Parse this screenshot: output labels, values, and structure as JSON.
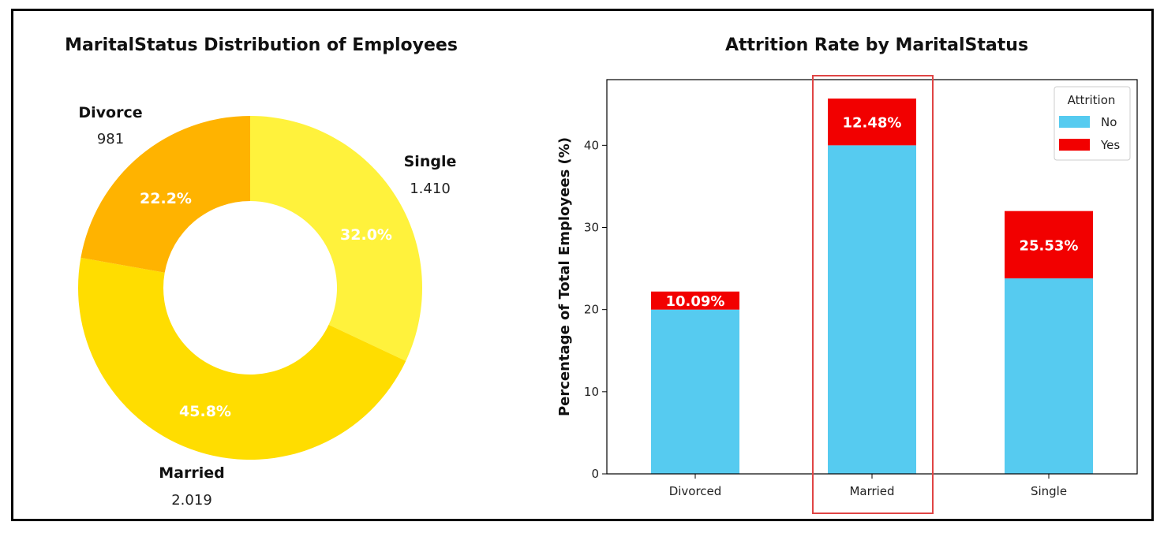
{
  "chart_data": [
    {
      "type": "pie",
      "donut": true,
      "title": "MaritalStatus Distribution of Employees",
      "slices": [
        {
          "name": "Single",
          "count_label": "1.410",
          "percent_label": "32.0%",
          "value": 32.0,
          "color": "#FFF23C"
        },
        {
          "name": "Married",
          "count_label": "2.019",
          "percent_label": "45.8%",
          "value": 45.8,
          "color": "#FFDD00"
        },
        {
          "name": "Divorce",
          "count_label": "981",
          "percent_label": "22.2%",
          "value": 22.2,
          "color": "#FFB300"
        }
      ]
    },
    {
      "type": "bar",
      "stacked": true,
      "title": "Attrition Rate by MaritalStatus",
      "ylabel": "Percentage of Total Employees (%)",
      "xlabel": "",
      "ylim": [
        0,
        48
      ],
      "yticks": [
        0,
        10,
        20,
        30,
        40
      ],
      "grid": false,
      "categories": [
        "Divorced",
        "Married",
        "Single"
      ],
      "series": [
        {
          "name": "No",
          "color": "#56CBF0",
          "values": [
            20.0,
            40.0,
            23.8
          ]
        },
        {
          "name": "Yes",
          "color": "#F20000",
          "values": [
            2.2,
            5.7,
            8.2
          ]
        }
      ],
      "segment_labels": [
        "10.09%",
        "12.48%",
        "25.53%"
      ],
      "legend": {
        "title": "Attrition",
        "position": "top-right"
      },
      "highlight_category": "Married",
      "highlight_color": "#E04545"
    }
  ]
}
